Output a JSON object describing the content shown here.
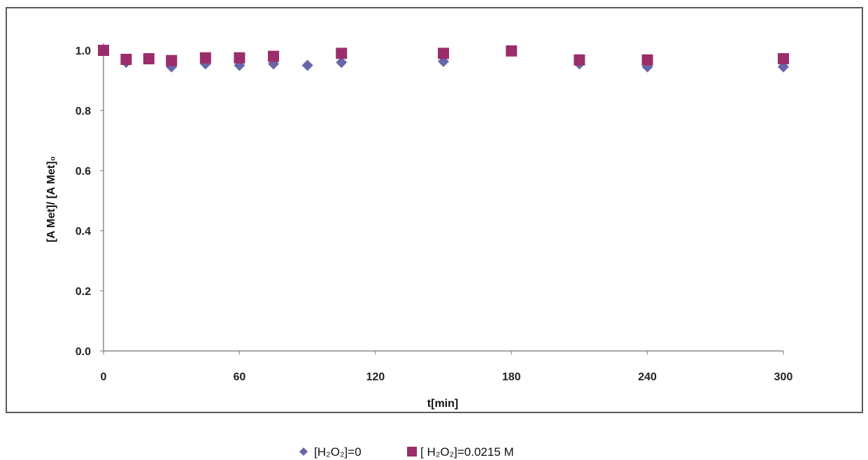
{
  "chart_data": {
    "type": "scatter",
    "title": "",
    "xlabel": "t[min]",
    "ylabel": "[A Met]/ [A Met]₀",
    "xlim": [
      0,
      300
    ],
    "ylim": [
      0,
      1.0
    ],
    "x_ticks": [
      "0",
      "60",
      "120",
      "180",
      "240",
      "300"
    ],
    "y_ticks": [
      "0.0",
      "0.2",
      "0.4",
      "0.6",
      "0.8",
      "1.0"
    ],
    "grid": false,
    "legend_position": "bottom",
    "series": [
      {
        "name": "[H₂O₂]=0",
        "marker": "diamond",
        "color": "#6666a8",
        "x": [
          0,
          10,
          30,
          45,
          60,
          75,
          90,
          105,
          150,
          210,
          240,
          300
        ],
        "y": [
          1.0,
          0.96,
          0.945,
          0.955,
          0.95,
          0.955,
          0.95,
          0.96,
          0.963,
          0.955,
          0.945,
          0.945
        ]
      },
      {
        "name": "[ H₂O₂]=0.0215 M",
        "marker": "square",
        "color": "#9b2d6b",
        "x": [
          0,
          10,
          20,
          30,
          45,
          60,
          75,
          105,
          150,
          180,
          210,
          240,
          300
        ],
        "y": [
          1.0,
          0.97,
          0.972,
          0.966,
          0.975,
          0.975,
          0.98,
          0.99,
          0.99,
          0.998,
          0.968,
          0.968,
          0.972
        ]
      }
    ]
  }
}
